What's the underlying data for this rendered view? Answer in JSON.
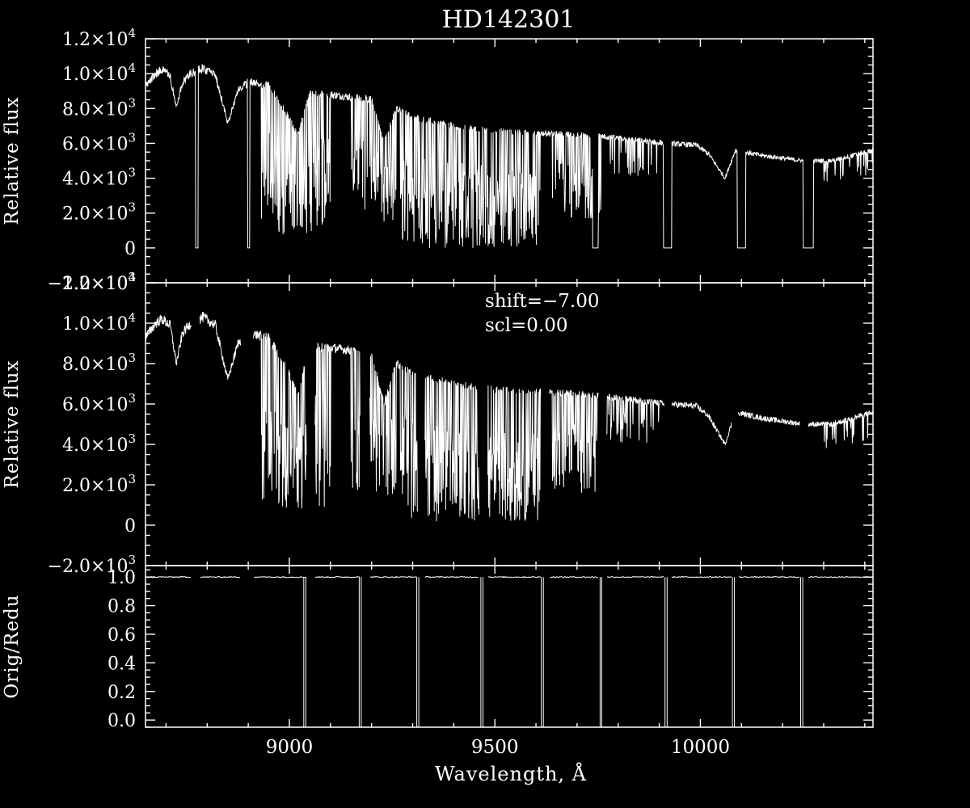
{
  "chart_data": [
    {
      "type": "line",
      "panel": "top",
      "title": "HD142301",
      "xlabel": "",
      "ylabel": "Relative flux",
      "xlim": [
        8650,
        10420
      ],
      "ylim": [
        -2000,
        12000
      ],
      "x_ticks": [
        9000,
        9500,
        10000
      ],
      "y_ticks": [
        {
          "value": -2000,
          "mant": "−2.0×10",
          "exp": "3"
        },
        {
          "value": 0,
          "mant": "0",
          "exp": ""
        },
        {
          "value": 2000,
          "mant": "2.0×10",
          "exp": "3"
        },
        {
          "value": 4000,
          "mant": "4.0×10",
          "exp": "3"
        },
        {
          "value": 6000,
          "mant": "6.0×10",
          "exp": "3"
        },
        {
          "value": 8000,
          "mant": "8.0×10",
          "exp": "3"
        },
        {
          "value": 10000,
          "mant": "1.0×10",
          "exp": "4"
        },
        {
          "value": 12000,
          "mant": "1.2×10",
          "exp": "4"
        }
      ],
      "continuum": [
        [
          8650,
          9300
        ],
        [
          8675,
          10000
        ],
        [
          8690,
          10200
        ],
        [
          8710,
          9900
        ],
        [
          8725,
          8000
        ],
        [
          8740,
          9500
        ],
        [
          8760,
          10000
        ],
        [
          8790,
          10300
        ],
        [
          8820,
          9900
        ],
        [
          8850,
          7200
        ],
        [
          8875,
          9000
        ],
        [
          8900,
          9500
        ],
        [
          8950,
          9300
        ],
        [
          9000,
          7500
        ],
        [
          9020,
          6500
        ],
        [
          9050,
          8800
        ],
        [
          9100,
          8800
        ],
        [
          9200,
          8500
        ],
        [
          9230,
          6000
        ],
        [
          9260,
          8000
        ],
        [
          9300,
          7500
        ],
        [
          9400,
          7000
        ],
        [
          9500,
          6700
        ],
        [
          9600,
          6600
        ],
        [
          9700,
          6500
        ],
        [
          9800,
          6300
        ],
        [
          9920,
          6000
        ],
        [
          9990,
          5900
        ],
        [
          10020,
          5400
        ],
        [
          10060,
          4000
        ],
        [
          10085,
          5600
        ],
        [
          10150,
          5300
        ],
        [
          10250,
          5000
        ],
        [
          10320,
          5000
        ],
        [
          10420,
          5600
        ]
      ],
      "absorption_bands": [
        [
          8930,
          9100,
          0.9
        ],
        [
          9150,
          9260,
          0.8
        ],
        [
          9270,
          9610,
          1.0
        ],
        [
          9640,
          9760,
          0.75
        ],
        [
          9770,
          9900,
          0.35
        ],
        [
          10300,
          10420,
          0.25
        ]
      ],
      "gaps": [
        [
          8772,
          8778
        ],
        [
          8898,
          8904
        ],
        [
          9738,
          9752
        ],
        [
          9910,
          9930
        ],
        [
          10090,
          10110
        ],
        [
          10250,
          10275
        ]
      ],
      "series": []
    },
    {
      "type": "line",
      "panel": "middle",
      "annotations": [
        "shift=−7.00",
        "scl=0.00"
      ],
      "xlabel": "",
      "ylabel": "Relative flux",
      "xlim": [
        8650,
        10420
      ],
      "ylim": [
        -2000,
        12000
      ],
      "x_ticks": [
        9000,
        9500,
        10000
      ],
      "y_ticks": [
        {
          "value": -2000,
          "mant": "−2.0×10",
          "exp": "3"
        },
        {
          "value": 0,
          "mant": "0",
          "exp": ""
        },
        {
          "value": 2000,
          "mant": "2.0×10",
          "exp": "3"
        },
        {
          "value": 4000,
          "mant": "4.0×10",
          "exp": "3"
        },
        {
          "value": 6000,
          "mant": "6.0×10",
          "exp": "3"
        },
        {
          "value": 8000,
          "mant": "8.0×10",
          "exp": "3"
        },
        {
          "value": 10000,
          "mant": "1.0×10",
          "exp": "4"
        },
        {
          "value": 12000,
          "mant": "1.2×10",
          "exp": "4"
        }
      ],
      "continuum": [
        [
          8650,
          9300
        ],
        [
          8675,
          10000
        ],
        [
          8690,
          10200
        ],
        [
          8710,
          9900
        ],
        [
          8725,
          8000
        ],
        [
          8740,
          9500
        ],
        [
          8760,
          10000
        ],
        [
          8790,
          10300
        ],
        [
          8820,
          9900
        ],
        [
          8850,
          7200
        ],
        [
          8875,
          9000
        ],
        [
          8900,
          9500
        ],
        [
          8950,
          9300
        ],
        [
          9000,
          7500
        ],
        [
          9020,
          6500
        ],
        [
          9050,
          8800
        ],
        [
          9100,
          8800
        ],
        [
          9200,
          8500
        ],
        [
          9230,
          6000
        ],
        [
          9260,
          8000
        ],
        [
          9300,
          7500
        ],
        [
          9400,
          7000
        ],
        [
          9500,
          6700
        ],
        [
          9600,
          6600
        ],
        [
          9700,
          6500
        ],
        [
          9800,
          6300
        ],
        [
          9920,
          6000
        ],
        [
          9990,
          5900
        ],
        [
          10020,
          5400
        ],
        [
          10060,
          4000
        ],
        [
          10085,
          5600
        ],
        [
          10150,
          5300
        ],
        [
          10250,
          5000
        ],
        [
          10320,
          5000
        ],
        [
          10420,
          5600
        ]
      ],
      "absorption_bands": [
        [
          8930,
          9100,
          0.9
        ],
        [
          9150,
          9260,
          0.8
        ],
        [
          9270,
          9610,
          1.0
        ],
        [
          9640,
          9760,
          0.75
        ],
        [
          9770,
          9900,
          0.35
        ],
        [
          10300,
          10420,
          0.25
        ]
      ],
      "gaps": [
        [
          8762,
          8782
        ],
        [
          8882,
          8912
        ],
        [
          9042,
          9062
        ],
        [
          9172,
          9195
        ],
        [
          9312,
          9330
        ],
        [
          9462,
          9482
        ],
        [
          9612,
          9632
        ],
        [
          9752,
          9772
        ],
        [
          9912,
          9930
        ],
        [
          10076,
          10092
        ],
        [
          10242,
          10262
        ]
      ],
      "series": []
    },
    {
      "type": "line",
      "panel": "bottom",
      "xlabel": "Wavelength, Å",
      "ylabel": "Orig/Redu",
      "xlim": [
        8650,
        10420
      ],
      "ylim": [
        -0.05,
        1.08
      ],
      "x_ticks": [
        9000,
        9500,
        10000
      ],
      "y_ticks": [
        {
          "value": 0.0,
          "mant": "0.0",
          "exp": ""
        },
        {
          "value": 0.2,
          "mant": "0.2",
          "exp": ""
        },
        {
          "value": 0.4,
          "mant": "0.4",
          "exp": ""
        },
        {
          "value": 0.6,
          "mant": "0.6",
          "exp": ""
        },
        {
          "value": 0.8,
          "mant": "0.8",
          "exp": ""
        },
        {
          "value": 1.0,
          "mant": "1.0",
          "exp": ""
        }
      ],
      "gaps": [
        [
          8762,
          8782
        ],
        [
          8882,
          8912
        ],
        [
          9042,
          9062
        ],
        [
          9172,
          9195
        ],
        [
          9312,
          9330
        ],
        [
          9462,
          9482
        ],
        [
          9612,
          9632
        ],
        [
          9752,
          9772
        ],
        [
          9912,
          9930
        ],
        [
          10076,
          10092
        ],
        [
          10242,
          10262
        ]
      ],
      "drops": [
        [
          9035,
          9040
        ],
        [
          9170,
          9175
        ],
        [
          9310,
          9315
        ],
        [
          9466,
          9471
        ],
        [
          9613,
          9618
        ],
        [
          9756,
          9760
        ],
        [
          9914,
          9919
        ],
        [
          10078,
          10083
        ],
        [
          10244,
          10249
        ]
      ],
      "series": []
    }
  ]
}
